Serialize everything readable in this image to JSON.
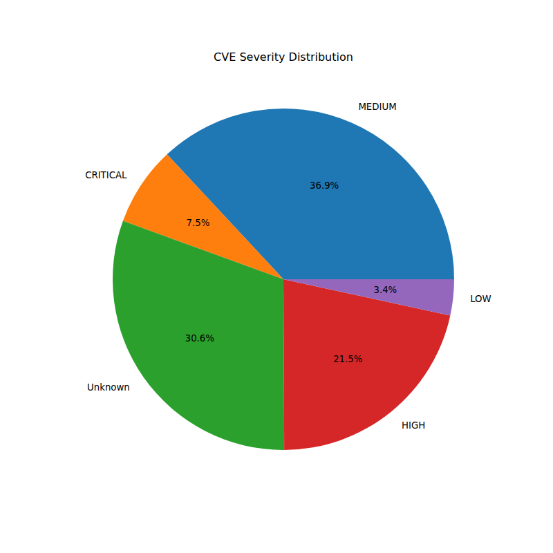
{
  "chart_data": {
    "type": "pie",
    "title": "CVE Severity Distribution",
    "categories": [
      "MEDIUM",
      "CRITICAL",
      "Unknown",
      "HIGH",
      "LOW"
    ],
    "values": [
      36.9,
      7.5,
      30.6,
      21.5,
      3.4
    ],
    "value_labels": [
      "36.9%",
      "7.5%",
      "30.6%",
      "21.5%",
      "3.4%"
    ],
    "colors": [
      "#1f77b4",
      "#ff7f0e",
      "#2ca02c",
      "#d62728",
      "#9467bd"
    ],
    "data_labels": true
  }
}
